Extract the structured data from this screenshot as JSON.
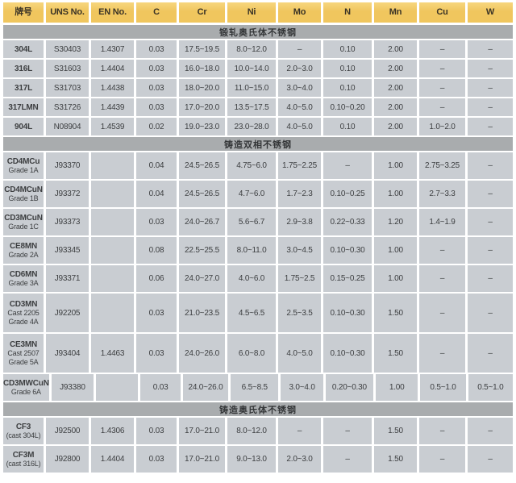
{
  "colors": {
    "header_bg": "#f0c65e",
    "header_bg_light": "#f7d67e",
    "header_text": "#3a3326",
    "section_bg": "#a9acae",
    "section_text": "#343638",
    "cell_bg": "#c9cdd2",
    "text": "#3d3f41",
    "page_bg": "#ffffff"
  },
  "table": {
    "columns": [
      "牌号",
      "UNS No.",
      "EN No.",
      "C",
      "Cr",
      "Ni",
      "Mo",
      "N",
      "Mn",
      "Cu",
      "W"
    ],
    "sections": [
      {
        "title": "锻轧奥氏体不锈钢",
        "rows": [
          {
            "grade": [
              "304L"
            ],
            "values": [
              "S30403",
              "1.4307",
              "0.03",
              "17.5~19.5",
              "8.0~12.0",
              "–",
              "0.10",
              "2.00",
              "–",
              "–"
            ]
          },
          {
            "grade": [
              "316L"
            ],
            "values": [
              "S31603",
              "1.4404",
              "0.03",
              "16.0~18.0",
              "10.0~14.0",
              "2.0~3.0",
              "0.10",
              "2.00",
              "–",
              "–"
            ]
          },
          {
            "grade": [
              "317L"
            ],
            "values": [
              "S31703",
              "1.4438",
              "0.03",
              "18.0~20.0",
              "11.0~15.0",
              "3.0~4.0",
              "0.10",
              "2.00",
              "–",
              "–"
            ]
          },
          {
            "grade": [
              "317LMN"
            ],
            "values": [
              "S31726",
              "1.4439",
              "0.03",
              "17.0~20.0",
              "13.5~17.5",
              "4.0~5.0",
              "0.10~0.20",
              "2.00",
              "–",
              "–"
            ]
          },
          {
            "grade": [
              "904L"
            ],
            "values": [
              "N08904",
              "1.4539",
              "0.02",
              "19.0~23.0",
              "23.0~28.0",
              "4.0~5.0",
              "0.10",
              "2.00",
              "1.0~2.0",
              "–"
            ]
          }
        ]
      },
      {
        "title": "铸造双相不锈钢",
        "rows": [
          {
            "grade": [
              "CD4MCu",
              "Grade 1A"
            ],
            "values": [
              "J93370",
              "",
              "0.04",
              "24.5~26.5",
              "4.75~6.0",
              "1.75~2.25",
              "–",
              "1.00",
              "2.75~3.25",
              "–"
            ]
          },
          {
            "grade": [
              "CD4MCuN",
              "Grade 1B"
            ],
            "values": [
              "J93372",
              "",
              "0.04",
              "24.5~26.5",
              "4.7~6.0",
              "1.7~2.3",
              "0.10~0.25",
              "1.00",
              "2.7~3.3",
              "–"
            ]
          },
          {
            "grade": [
              "CD3MCuN",
              "Grade 1C"
            ],
            "values": [
              "J93373",
              "",
              "0.03",
              "24.0~26.7",
              "5.6~6.7",
              "2.9~3.8",
              "0.22~0.33",
              "1.20",
              "1.4~1.9",
              "–"
            ]
          },
          {
            "grade": [
              "CE8MN",
              "Grade 2A"
            ],
            "values": [
              "J93345",
              "",
              "0.08",
              "22.5~25.5",
              "8.0~11.0",
              "3.0~4.5",
              "0.10~0.30",
              "1.00",
              "–",
              "–"
            ]
          },
          {
            "grade": [
              "CD6MN",
              "Grade 3A"
            ],
            "values": [
              "J93371",
              "",
              "0.06",
              "24.0~27.0",
              "4.0~6.0",
              "1.75~2.5",
              "0.15~0.25",
              "1.00",
              "–",
              "–"
            ]
          },
          {
            "grade": [
              "CD3MN",
              "Cast 2205",
              "Grade 4A"
            ],
            "values": [
              "J92205",
              "",
              "0.03",
              "21.0~23.5",
              "4.5~6.5",
              "2.5~3.5",
              "0.10~0.30",
              "1.50",
              "–",
              "–"
            ]
          },
          {
            "grade": [
              "CE3MN",
              "Cast 2507",
              "Grade 5A"
            ],
            "values": [
              "J93404",
              "1.4463",
              "0.03",
              "24.0~26.0",
              "6.0~8.0",
              "4.0~5.0",
              "0.10~0.30",
              "1.50",
              "–",
              "–"
            ]
          },
          {
            "grade": [
              "CD3MWCuN",
              "Grade 6A"
            ],
            "values": [
              "J93380",
              "",
              "0.03",
              "24.0~26.0",
              "6.5~8.5",
              "3.0~4.0",
              "0.20~0.30",
              "1.00",
              "0.5~1.0",
              "0.5~1.0"
            ]
          }
        ]
      },
      {
        "title": "铸造奥氏体不锈钢",
        "rows": [
          {
            "grade": [
              "CF3",
              "(cast 304L)"
            ],
            "values": [
              "J92500",
              "1.4306",
              "0.03",
              "17.0~21.0",
              "8.0~12.0",
              "–",
              "–",
              "1.50",
              "–",
              "–"
            ]
          },
          {
            "grade": [
              "CF3M",
              "(cast 316L)"
            ],
            "values": [
              "J92800",
              "1.4404",
              "0.03",
              "17.0~21.0",
              "9.0~13.0",
              "2.0~3.0",
              "–",
              "1.50",
              "–",
              "–"
            ]
          }
        ]
      }
    ]
  }
}
